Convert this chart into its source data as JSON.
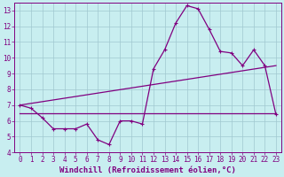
{
  "xlabel": "Windchill (Refroidissement éolien,°C)",
  "bg_color": "#c8eef0",
  "line_color": "#800080",
  "grid_color": "#a0c8d0",
  "xlim": [
    -0.5,
    23.5
  ],
  "ylim": [
    4,
    13.5
  ],
  "xticks": [
    0,
    1,
    2,
    3,
    4,
    5,
    6,
    7,
    8,
    9,
    10,
    11,
    12,
    13,
    14,
    15,
    16,
    17,
    18,
    19,
    20,
    21,
    22,
    23
  ],
  "yticks": [
    4,
    5,
    6,
    7,
    8,
    9,
    10,
    11,
    12,
    13
  ],
  "line1": {
    "x": [
      0,
      1,
      2,
      3,
      4,
      5,
      6,
      7,
      8,
      9,
      10,
      11,
      12,
      13,
      14,
      15,
      16,
      17,
      18,
      19,
      20,
      21,
      22,
      23
    ],
    "y": [
      7.0,
      6.8,
      6.2,
      5.5,
      5.5,
      5.5,
      5.8,
      4.8,
      4.5,
      6.0,
      6.0,
      5.8,
      9.3,
      10.5,
      12.2,
      13.3,
      13.1,
      11.8,
      10.4,
      10.3,
      9.5,
      10.5,
      9.5,
      6.4
    ]
  },
  "line2": {
    "x": [
      0,
      23
    ],
    "y": [
      7.0,
      9.5
    ]
  },
  "line3": {
    "x": [
      0,
      23
    ],
    "y": [
      6.5,
      6.5
    ]
  },
  "tick_fontsize": 5.5,
  "xlabel_fontsize": 6.5,
  "marker": "+",
  "markersize": 3.5,
  "linewidth": 0.9
}
